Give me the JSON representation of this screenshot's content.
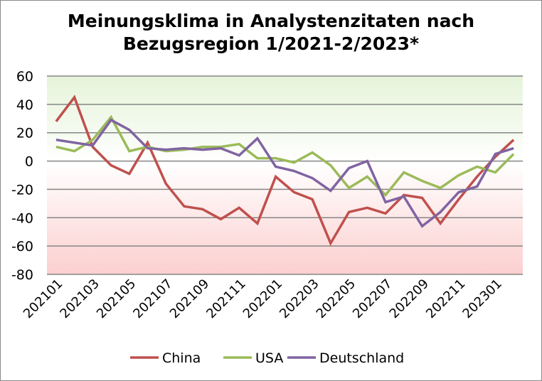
{
  "chart_data": {
    "type": "line",
    "title_line1": "Meinungsklima in Analystenzitaten nach",
    "title_line2": "Bezugsregion 1/2021-2/2023*",
    "xlabel": "",
    "ylabel": "",
    "ylim": [
      -80,
      60
    ],
    "yticks": [
      60,
      40,
      20,
      0,
      -20,
      -40,
      -60,
      -80
    ],
    "grid": true,
    "legend_position": "bottom",
    "x": [
      "202101",
      "202102",
      "202103",
      "202104",
      "202105",
      "202106",
      "202107",
      "202108",
      "202109",
      "202110",
      "202111",
      "202112",
      "202201",
      "202202",
      "202203",
      "202204",
      "202205",
      "202206",
      "202207",
      "202208",
      "202209",
      "202210",
      "202211",
      "202212",
      "202301",
      "202302"
    ],
    "xtick_labels": [
      "202101",
      "202103",
      "202105",
      "202107",
      "202109",
      "202111",
      "202201",
      "202203",
      "202205",
      "202207",
      "202209",
      "202211",
      "202301"
    ],
    "series": [
      {
        "name": "China",
        "color": "#c0504d",
        "values": [
          28,
          45,
          10,
          -3,
          -9,
          13,
          -16,
          -32,
          -34,
          -41,
          -33,
          -44,
          -11,
          -22,
          -27,
          -58,
          -36,
          -33,
          -37,
          -24,
          -26,
          -44,
          -27,
          -11,
          3,
          15
        ]
      },
      {
        "name": "USA",
        "color": "#9bbb59",
        "values": [
          10,
          7,
          15,
          31,
          7,
          10,
          7,
          8,
          10,
          10,
          12,
          2,
          2,
          -1,
          6,
          -3,
          -19,
          -11,
          -24,
          -8,
          -14,
          -19,
          -10,
          -4,
          -8,
          5
        ]
      },
      {
        "name": "Deutschland",
        "color": "#8064a2",
        "values": [
          15,
          13,
          11,
          29,
          22,
          9,
          8,
          9,
          8,
          9,
          4,
          16,
          -4,
          -7,
          -12,
          -21,
          -5,
          0,
          -29,
          -25,
          -46,
          -36,
          -22,
          -18,
          5,
          9
        ]
      }
    ]
  }
}
